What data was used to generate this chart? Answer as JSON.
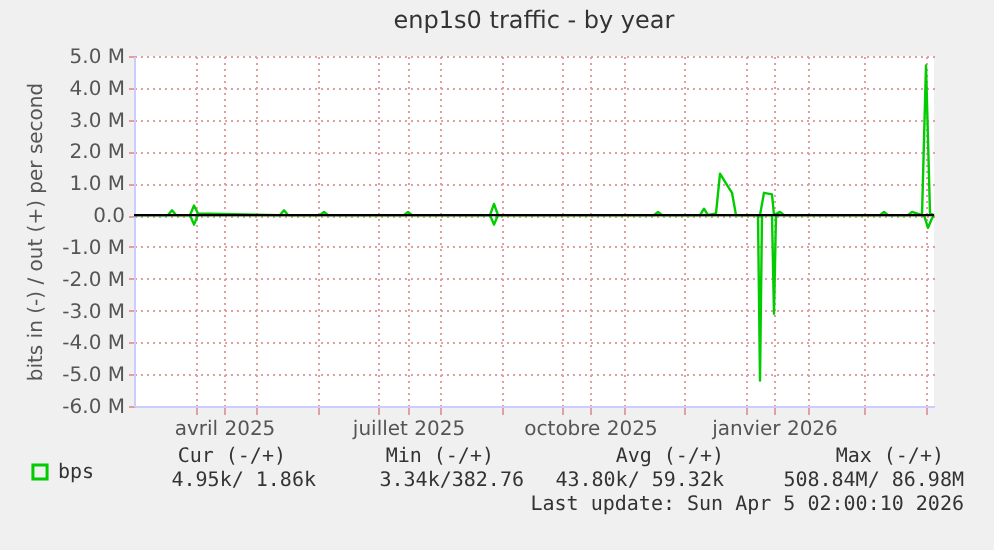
{
  "chart_data": {
    "type": "line",
    "title": "enp1s0 traffic - by year",
    "ylabel": "bits in (-) / out (+) per second",
    "series": [
      {
        "name": "bps",
        "color": "#00cc00",
        "x": [
          "2025-03-01",
          "2025-03-18",
          "2025-03-20",
          "2025-03-22",
          "2025-03-29",
          "2025-03-31",
          "2025-04-02",
          "2025-05-13",
          "2025-05-15",
          "2025-05-17",
          "2025-06-02",
          "2025-06-04",
          "2025-06-06",
          "2025-07-14",
          "2025-07-16",
          "2025-07-18",
          "2025-08-26",
          "2025-08-28",
          "2025-08-30",
          "2025-11-16",
          "2025-11-18",
          "2025-11-20",
          "2025-12-09",
          "2025-12-11",
          "2025-12-13",
          "2025-12-17",
          "2025-12-19",
          "2025-12-22",
          "2025-12-25",
          "2025-12-27",
          "2026-01-08",
          "2026-01-10",
          "2026-01-14",
          "2026-01-15",
          "2026-01-18",
          "2026-01-20",
          "2026-03-09",
          "2026-03-11",
          "2026-03-13",
          "2026-03-23",
          "2026-03-25",
          "2026-03-30",
          "2026-04-01",
          "2026-04-03",
          "2026-04-05"
        ],
        "values": [
          0.0,
          0.0,
          0.15,
          0.0,
          0.0,
          0.3,
          0.05,
          0.0,
          0.15,
          0.0,
          0.0,
          0.1,
          0.0,
          0.0,
          0.1,
          0.0,
          0.0,
          0.35,
          0.0,
          0.0,
          0.1,
          0.0,
          0.0,
          0.2,
          0.0,
          0.05,
          1.3,
          1.0,
          0.7,
          0.0,
          0.0,
          0.7,
          0.65,
          0.0,
          0.1,
          0.0,
          0.0,
          0.1,
          0.0,
          0.0,
          0.1,
          0.0,
          4.7,
          0.05,
          0.0
        ]
      },
      {
        "color": "#00cc00",
        "x": [
          "2025-03-01",
          "2025-03-29",
          "2025-03-31",
          "2025-04-02",
          "2025-08-26",
          "2025-08-28",
          "2025-08-30",
          "2026-01-07",
          "2026-01-08",
          "2026-01-09",
          "2026-01-14",
          "2026-01-15",
          "2026-01-16",
          "2026-03-31",
          "2026-04-02",
          "2026-04-04",
          "2026-04-05"
        ],
        "values": [
          0.0,
          0.0,
          -0.3,
          0.0,
          0.0,
          -0.3,
          0.0,
          0.0,
          -5.2,
          0.0,
          0.0,
          -3.1,
          0.0,
          0.0,
          -0.4,
          -0.1,
          0.0
        ]
      }
    ],
    "xlim": [
      "2025-03-01",
      "2026-04-05"
    ],
    "xticks": [
      {
        "value": "2025-04-01",
        "label": null
      },
      {
        "value": "2025-04-15",
        "label": "avril 2025"
      },
      {
        "value": "2025-05-01",
        "label": null
      },
      {
        "value": "2025-06-01",
        "label": null
      },
      {
        "value": "2025-07-01",
        "label": null
      },
      {
        "value": "2025-07-16",
        "label": "juillet 2025"
      },
      {
        "value": "2025-08-01",
        "label": null
      },
      {
        "value": "2025-09-01",
        "label": null
      },
      {
        "value": "2025-10-01",
        "label": null
      },
      {
        "value": "2025-10-15",
        "label": "octobre 2025"
      },
      {
        "value": "2025-11-01",
        "label": null
      },
      {
        "value": "2025-12-01",
        "label": null
      },
      {
        "value": "2026-01-01",
        "label": null
      },
      {
        "value": "2026-01-15",
        "label": "janvier 2026"
      },
      {
        "value": "2026-02-01",
        "label": null
      },
      {
        "value": "2026-03-01",
        "label": null
      },
      {
        "value": "2026-04-01",
        "label": null
      }
    ],
    "ylim": [
      -6.0,
      5.0
    ],
    "yticks": [
      {
        "value": -6,
        "label": "-6.0 M"
      },
      {
        "value": -5,
        "label": "-5.0 M"
      },
      {
        "value": -4,
        "label": "-4.0 M"
      },
      {
        "value": -3,
        "label": "-3.0 M"
      },
      {
        "value": -2,
        "label": "-2.0 M"
      },
      {
        "value": -1,
        "label": "-1.0 M"
      },
      {
        "value": 0,
        "label": "0.0"
      },
      {
        "value": 1,
        "label": "1.0 M"
      },
      {
        "value": 2,
        "label": "2.0 M"
      },
      {
        "value": 3,
        "label": "3.0 M"
      },
      {
        "value": 4,
        "label": "4.0 M"
      },
      {
        "value": 5,
        "label": "5.0 M"
      }
    ],
    "ref_lines": [
      {
        "axis": "y",
        "value": 0,
        "color": "#000000"
      }
    ],
    "grid": true,
    "legend": "bottom left",
    "marker": "none",
    "line_style": "solid",
    "annotations": [
      "Cur (-/+)",
      "Min (-/+)",
      "Avg (-/+)",
      "Max (-/+)",
      "4.95k/   1.86k",
      "3.34k/382.76",
      "43.80k/ 59.32k",
      "508.84M/ 86.98M",
      "Last update: Sun Apr  5 02:00:10 2026"
    ]
  }
}
